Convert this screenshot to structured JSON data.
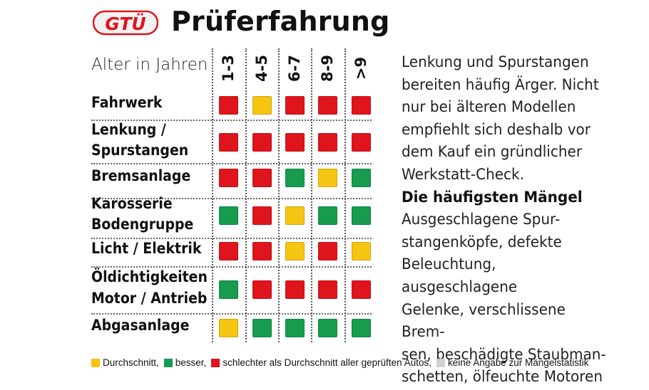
{
  "header": {
    "logo_text": "GTÜ",
    "title": "Prüferfahrung"
  },
  "table": {
    "age_label": "Alter in Jahren",
    "columns": [
      "1-3",
      "4-5",
      "6-7",
      "8-9",
      ">9"
    ],
    "rows": [
      {
        "label": [
          "Fahrwerk"
        ],
        "ratings": [
          "red",
          "yellow",
          "red",
          "red",
          "red"
        ]
      },
      {
        "label": [
          "Lenkung /",
          "Spurstangen"
        ],
        "ratings": [
          "red",
          "red",
          "red",
          "red",
          "red"
        ]
      },
      {
        "label": [
          "Bremsanlage"
        ],
        "ratings": [
          "red",
          "red",
          "green",
          "yellow",
          "green"
        ]
      },
      {
        "label": [
          "Karosserie",
          "Bodengruppe"
        ],
        "ratings": [
          "green",
          "red",
          "yellow",
          "green",
          "green"
        ]
      },
      {
        "label": [
          "Licht / Elektrik"
        ],
        "ratings": [
          "red",
          "red",
          "yellow",
          "red",
          "yellow"
        ]
      },
      {
        "label": [
          "Öldichtigkeiten",
          "Motor / Antrieb"
        ],
        "ratings": [
          "green",
          "red",
          "red",
          "red",
          "red"
        ]
      },
      {
        "label": [
          "Abgasanlage"
        ],
        "ratings": [
          "yellow",
          "green",
          "green",
          "green",
          "green"
        ]
      }
    ]
  },
  "colors": {
    "red": "#e0141c",
    "yellow": "#f6c512",
    "green": "#169b4f",
    "grey": "#d2d2d2",
    "logo_red": "#e0141c"
  },
  "text": {
    "intro_lines": [
      "Lenkung und Spurstangen",
      "bereiten häufig Ärger. Nicht",
      "nur bei älteren Modellen",
      "empfiehlt sich deshalb vor",
      "dem Kauf ein gründlicher",
      "Werkstatt-Check."
    ],
    "subheading": "Die häufigsten Mängel",
    "defects_lines": [
      "Ausgeschlagene Spur-",
      "stangenköpfe, defekte",
      "Beleuchtung, ausgeschlagene",
      "Gelenke, verschlissene Brem-",
      "sen, beschädigte Staubman-",
      "schetten, ölfeuchte Motoren"
    ]
  },
  "legend": [
    {
      "color": "yellow",
      "text": "Durchschnitt,"
    },
    {
      "color": "green",
      "text": "besser,"
    },
    {
      "color": "red",
      "text": "schlechter als Durchschnitt aller geprüften Autos,"
    },
    {
      "color": "grey",
      "text": "keine Angabe zur Mängelstatistik"
    }
  ]
}
